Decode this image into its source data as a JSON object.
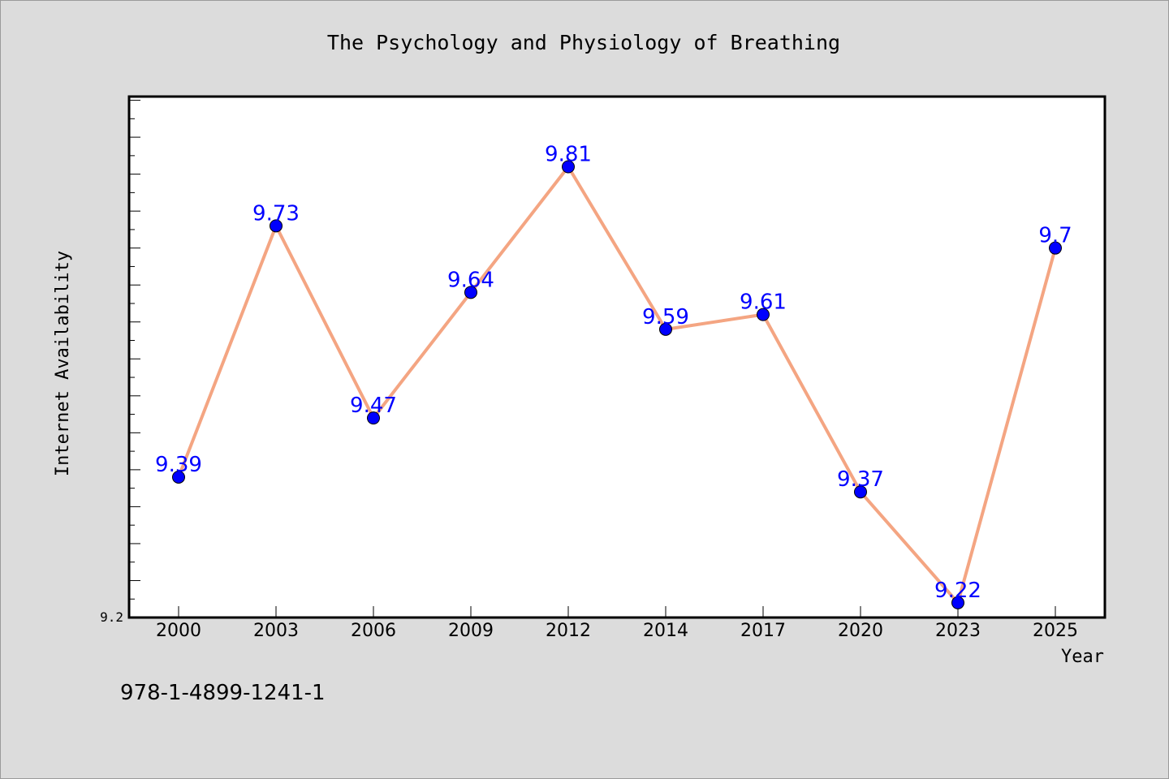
{
  "page": {
    "caption": "978-1-4899-1241-1"
  },
  "chart_data": {
    "type": "line",
    "title": "The Psychology and Physiology of Breathing",
    "xlabel": "Year",
    "ylabel": "Internet Availability",
    "categories": [
      "2000",
      "2003",
      "2006",
      "2009",
      "2012",
      "2014",
      "2017",
      "2020",
      "2023",
      "2025"
    ],
    "series": [
      {
        "values": [
          9.39,
          9.73,
          9.47,
          9.64,
          9.81,
          9.59,
          9.61,
          9.37,
          9.22,
          9.7
        ],
        "labels": [
          "9.39",
          "9.73",
          "9.47",
          "9.64",
          "9.81",
          "9.59",
          "9.61",
          "9.37",
          "9.22",
          "9.7"
        ]
      }
    ],
    "ylim": [
      9.2,
      9.905
    ],
    "yticks_labeled": [
      "9.2"
    ],
    "grid": false,
    "legend": "none",
    "colors": {
      "line": "#f4a582",
      "marker": "#0000ff",
      "data_label": "#0000ff",
      "plot_bg": "#ffffff",
      "page_bg": "#dcdcdc"
    }
  }
}
